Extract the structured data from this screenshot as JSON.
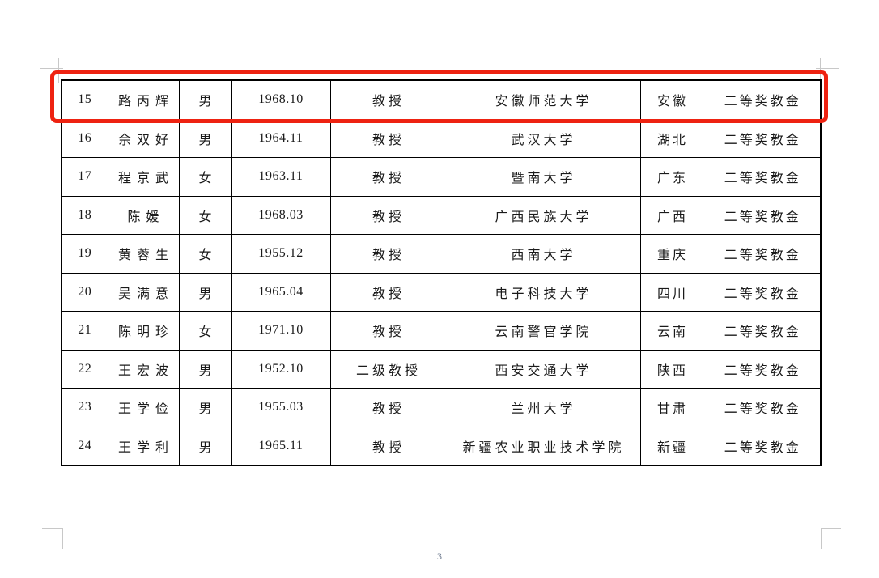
{
  "document": {
    "page_number": "3"
  },
  "colors": {
    "highlight_box": "#ee2211",
    "table_border": "#000000",
    "text": "#1a1a1a",
    "crop_mark": "#c8c8c8",
    "page_number": "#6f7b8f"
  },
  "table": {
    "columns": [
      "index",
      "name",
      "gender",
      "birth-date",
      "title",
      "institution",
      "province",
      "award"
    ],
    "rows": [
      [
        "15",
        "路丙辉",
        "男",
        "1968.10",
        "教授",
        "安徽师范大学",
        "安徽",
        "二等奖教金"
      ],
      [
        "16",
        "佘双好",
        "男",
        "1964.11",
        "教授",
        "武汉大学",
        "湖北",
        "二等奖教金"
      ],
      [
        "17",
        "程京武",
        "女",
        "1963.11",
        "教授",
        "暨南大学",
        "广东",
        "二等奖教金"
      ],
      [
        "18",
        "陈媛",
        "女",
        "1968.03",
        "教授",
        "广西民族大学",
        "广西",
        "二等奖教金"
      ],
      [
        "19",
        "黄蓉生",
        "女",
        "1955.12",
        "教授",
        "西南大学",
        "重庆",
        "二等奖教金"
      ],
      [
        "20",
        "吴满意",
        "男",
        "1965.04",
        "教授",
        "电子科技大学",
        "四川",
        "二等奖教金"
      ],
      [
        "21",
        "陈明珍",
        "女",
        "1971.10",
        "教授",
        "云南警官学院",
        "云南",
        "二等奖教金"
      ],
      [
        "22",
        "王宏波",
        "男",
        "1952.10",
        "二级教授",
        "西安交通大学",
        "陕西",
        "二等奖教金"
      ],
      [
        "23",
        "王学俭",
        "男",
        "1955.03",
        "教授",
        "兰州大学",
        "甘肃",
        "二等奖教金"
      ],
      [
        "24",
        "王学利",
        "男",
        "1965.11",
        "教授",
        "新疆农业职业技术学院",
        "新疆",
        "二等奖教金"
      ]
    ],
    "highlighted_row_index": "15"
  }
}
